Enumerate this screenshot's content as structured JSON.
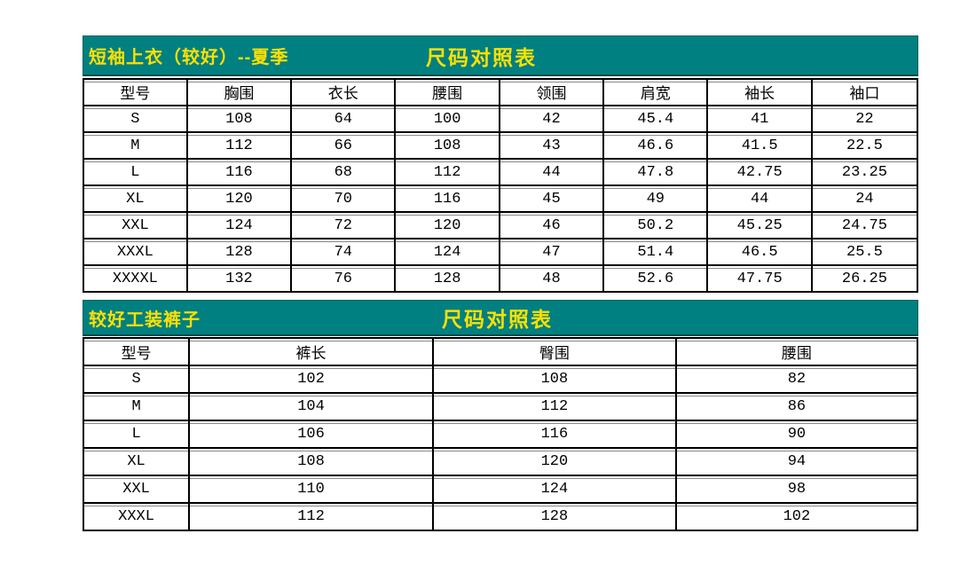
{
  "colors": {
    "teal": "#008080",
    "yellow": "#ffe000",
    "border": "#000000",
    "grid": "#8a8a8a",
    "page": "#ffffff"
  },
  "shirt_table": {
    "title_left": "短袖上衣（较好）--夏季",
    "title_center": "尺码对照表",
    "headers": [
      "型号",
      "胸围",
      "衣长",
      "腰围",
      "领围",
      "肩宽",
      "袖长",
      "袖口"
    ],
    "rows": [
      [
        "S",
        "108",
        "64",
        "100",
        "42",
        "45.4",
        "41",
        "22"
      ],
      [
        "M",
        "112",
        "66",
        "108",
        "43",
        "46.6",
        "41.5",
        "22.5"
      ],
      [
        "L",
        "116",
        "68",
        "112",
        "44",
        "47.8",
        "42.75",
        "23.25"
      ],
      [
        "XL",
        "120",
        "70",
        "116",
        "45",
        "49",
        "44",
        "24"
      ],
      [
        "XXL",
        "124",
        "72",
        "120",
        "46",
        "50.2",
        "45.25",
        "24.75"
      ],
      [
        "XXXL",
        "128",
        "74",
        "124",
        "47",
        "51.4",
        "46.5",
        "25.5"
      ],
      [
        "XXXXL",
        "132",
        "76",
        "128",
        "48",
        "52.6",
        "47.75",
        "26.25"
      ]
    ]
  },
  "pants_table": {
    "title_left": "较好工装裤子",
    "title_center": "尺码对照表",
    "headers": [
      "型号",
      "裤长",
      "臀围",
      "腰围"
    ],
    "rows": [
      [
        "S",
        "102",
        "108",
        "82"
      ],
      [
        "M",
        "104",
        "112",
        "86"
      ],
      [
        "L",
        "106",
        "116",
        "90"
      ],
      [
        "XL",
        "108",
        "120",
        "94"
      ],
      [
        "XXL",
        "110",
        "124",
        "98"
      ],
      [
        "XXXL",
        "112",
        "128",
        "102"
      ]
    ]
  }
}
